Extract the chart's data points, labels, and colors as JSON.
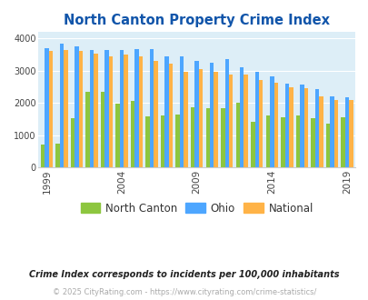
{
  "title": "North Canton Property Crime Index",
  "years": [
    1999,
    2000,
    2001,
    2002,
    2003,
    2004,
    2005,
    2006,
    2007,
    2008,
    2009,
    2010,
    2011,
    2012,
    2013,
    2014,
    2015,
    2016,
    2017,
    2018,
    2019
  ],
  "north_canton": [
    720,
    740,
    1530,
    2350,
    2360,
    1970,
    2060,
    1580,
    1620,
    1650,
    1870,
    1830,
    1840,
    2020,
    1410,
    1620,
    1550,
    1620,
    1530,
    1370,
    1560
  ],
  "ohio": [
    3700,
    3830,
    3770,
    3640,
    3640,
    3640,
    3680,
    3670,
    3460,
    3460,
    3300,
    3260,
    3360,
    3110,
    2960,
    2820,
    2600,
    2570,
    2440,
    2200,
    2180
  ],
  "national": [
    3620,
    3650,
    3620,
    3540,
    3460,
    3510,
    3440,
    3310,
    3210,
    2980,
    3060,
    2960,
    2880,
    2870,
    2720,
    2620,
    2500,
    2460,
    2210,
    2080,
    2080
  ],
  "north_canton_color": "#8dc63f",
  "ohio_color": "#4da6ff",
  "national_color": "#ffb347",
  "plot_bg": "#ddeef7",
  "xtick_years": [
    1999,
    2004,
    2009,
    2014,
    2019
  ],
  "footnote1": "Crime Index corresponds to incidents per 100,000 inhabitants",
  "footnote2": "© 2025 CityRating.com - https://www.cityrating.com/crime-statistics/",
  "title_color": "#1155aa",
  "footnote1_color": "#222222",
  "footnote2_color": "#aaaaaa",
  "legend_label_color": "#333333"
}
